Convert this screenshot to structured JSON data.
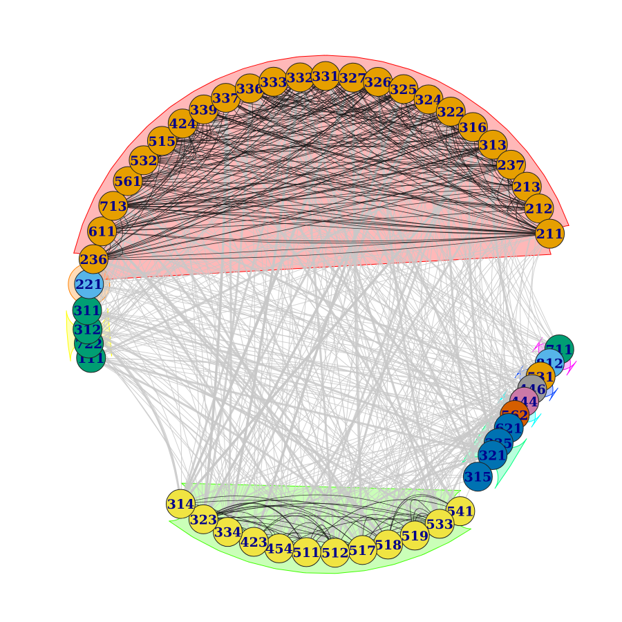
{
  "colors": {
    "orange": "#e69f00",
    "skyblue": "#56b4e9",
    "green": "#009e73",
    "yellow": "#f0e442",
    "blue": "#0072b2",
    "vermillion": "#d55e00",
    "purple": "#cc79a7",
    "gray": "#999999"
  },
  "groups": [
    {
      "id": "g-red",
      "fill": "#ff0000",
      "stroke": "#ff0000",
      "members": [
        236,
        611,
        713,
        561,
        532,
        515,
        424,
        339,
        337,
        336,
        333,
        332,
        331,
        327,
        326,
        325,
        324,
        322,
        316,
        313,
        237,
        213,
        212,
        211
      ]
    },
    {
      "id": "g-orange",
      "fill": "#ff8000",
      "stroke": "#ff8000",
      "members": [
        221
      ]
    },
    {
      "id": "g-yellow",
      "fill": "#ffff00",
      "stroke": "#ffff00",
      "members": [
        311,
        312,
        722,
        111
      ]
    },
    {
      "id": "g-lime",
      "fill": "#40ff00",
      "stroke": "#40ff00",
      "members": [
        314,
        323,
        334,
        423,
        454,
        511,
        512,
        517,
        518,
        519,
        533,
        541
      ]
    },
    {
      "id": "g-teal",
      "fill": "#00ff80",
      "stroke": "#00ff80",
      "members": [
        315,
        321,
        335,
        621
      ]
    },
    {
      "id": "g-cyan",
      "fill": "#00ffff",
      "stroke": "#00ffff",
      "members": [
        562,
        444
      ]
    },
    {
      "id": "g-blue",
      "fill": "#0040ff",
      "stroke": "#0040ff",
      "members": [
        446,
        531
      ]
    },
    {
      "id": "g-magenta",
      "fill": "#ff00ff",
      "stroke": "#ff00ff",
      "members": [
        812,
        711
      ]
    }
  ],
  "nodes": [
    {
      "label": "111",
      "color": "green"
    },
    {
      "label": "722",
      "color": "green"
    },
    {
      "label": "312",
      "color": "green"
    },
    {
      "label": "311",
      "color": "green"
    },
    {
      "label": "221",
      "color": "skyblue"
    },
    {
      "label": "236",
      "color": "orange"
    },
    {
      "label": "611",
      "color": "orange"
    },
    {
      "label": "713",
      "color": "orange"
    },
    {
      "label": "561",
      "color": "orange"
    },
    {
      "label": "532",
      "color": "orange"
    },
    {
      "label": "515",
      "color": "orange"
    },
    {
      "label": "424",
      "color": "orange"
    },
    {
      "label": "339",
      "color": "orange"
    },
    {
      "label": "337",
      "color": "orange"
    },
    {
      "label": "336",
      "color": "orange"
    },
    {
      "label": "333",
      "color": "orange"
    },
    {
      "label": "332",
      "color": "orange"
    },
    {
      "label": "331",
      "color": "orange"
    },
    {
      "label": "327",
      "color": "orange"
    },
    {
      "label": "326",
      "color": "orange"
    },
    {
      "label": "325",
      "color": "orange"
    },
    {
      "label": "324",
      "color": "orange"
    },
    {
      "label": "322",
      "color": "orange"
    },
    {
      "label": "316",
      "color": "orange"
    },
    {
      "label": "313",
      "color": "orange"
    },
    {
      "label": "237",
      "color": "orange"
    },
    {
      "label": "213",
      "color": "orange"
    },
    {
      "label": "212",
      "color": "orange"
    },
    {
      "label": "211",
      "color": "orange"
    },
    {
      "label": "711",
      "color": "green"
    },
    {
      "label": "812",
      "color": "skyblue"
    },
    {
      "label": "531",
      "color": "orange"
    },
    {
      "label": "446",
      "color": "gray"
    },
    {
      "label": "444",
      "color": "purple"
    },
    {
      "label": "562",
      "color": "vermillion"
    },
    {
      "label": "621",
      "color": "blue"
    },
    {
      "label": "335",
      "color": "blue"
    },
    {
      "label": "321",
      "color": "blue"
    },
    {
      "label": "315",
      "color": "blue"
    },
    {
      "label": "541",
      "color": "yellow"
    },
    {
      "label": "533",
      "color": "yellow"
    },
    {
      "label": "519",
      "color": "yellow"
    },
    {
      "label": "518",
      "color": "yellow"
    },
    {
      "label": "517",
      "color": "yellow"
    },
    {
      "label": "512",
      "color": "yellow"
    },
    {
      "label": "511",
      "color": "yellow"
    },
    {
      "label": "454",
      "color": "yellow"
    },
    {
      "label": "423",
      "color": "yellow"
    },
    {
      "label": "334",
      "color": "yellow"
    },
    {
      "label": "323",
      "color": "yellow"
    },
    {
      "label": "314",
      "color": "yellow"
    }
  ]
}
